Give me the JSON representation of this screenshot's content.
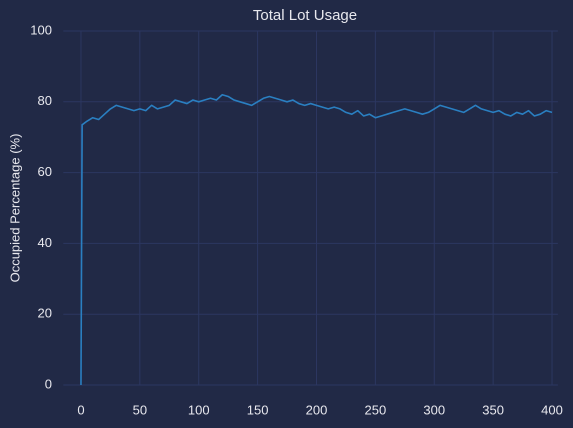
{
  "chart_data": {
    "type": "line",
    "title": "Total Lot Usage",
    "y_label": "Occupied Percentage (%)",
    "x": [
      0,
      1,
      5,
      10,
      15,
      20,
      25,
      30,
      35,
      40,
      45,
      50,
      55,
      60,
      65,
      70,
      75,
      80,
      85,
      90,
      95,
      100,
      105,
      110,
      115,
      120,
      125,
      130,
      135,
      140,
      145,
      150,
      155,
      160,
      165,
      170,
      175,
      180,
      185,
      190,
      195,
      200,
      205,
      210,
      215,
      220,
      225,
      230,
      235,
      240,
      245,
      250,
      255,
      260,
      265,
      270,
      275,
      280,
      285,
      290,
      295,
      300,
      305,
      310,
      315,
      320,
      325,
      330,
      335,
      340,
      345,
      350,
      355,
      360,
      365,
      370,
      375,
      380,
      385,
      390,
      395,
      400
    ],
    "series": [
      {
        "color": "#2a7fc1",
        "values": [
          0,
          73.5,
          74.5,
          75.5,
          75,
          76.5,
          78,
          79,
          78.5,
          78,
          77.5,
          78,
          77.5,
          79,
          78,
          78.5,
          79,
          80.5,
          80,
          79.5,
          80.5,
          80,
          80.5,
          81,
          80.5,
          82,
          81.5,
          80.5,
          80,
          79.5,
          79,
          80,
          81,
          81.5,
          81,
          80.5,
          80,
          80.5,
          79.5,
          79,
          79.5,
          79,
          78.5,
          78,
          78.5,
          78,
          77,
          76.5,
          77.5,
          76,
          76.5,
          75.5,
          76,
          76.5,
          77,
          77.5,
          78,
          77.5,
          77,
          76.5,
          77,
          78,
          79,
          78.5,
          78,
          77.5,
          77,
          78,
          79,
          78,
          77.5,
          77,
          77.5,
          76.5,
          76,
          77,
          76.5,
          77.5,
          76,
          76.5,
          77.5,
          77
        ]
      }
    ],
    "xlim": [
      -15,
      405
    ],
    "xticks": [
      0,
      50,
      100,
      150,
      200,
      250,
      300,
      350,
      400
    ],
    "ylim": [
      0,
      100
    ],
    "yticks": [
      0,
      20,
      40,
      60,
      80,
      100
    ],
    "grid": true
  }
}
